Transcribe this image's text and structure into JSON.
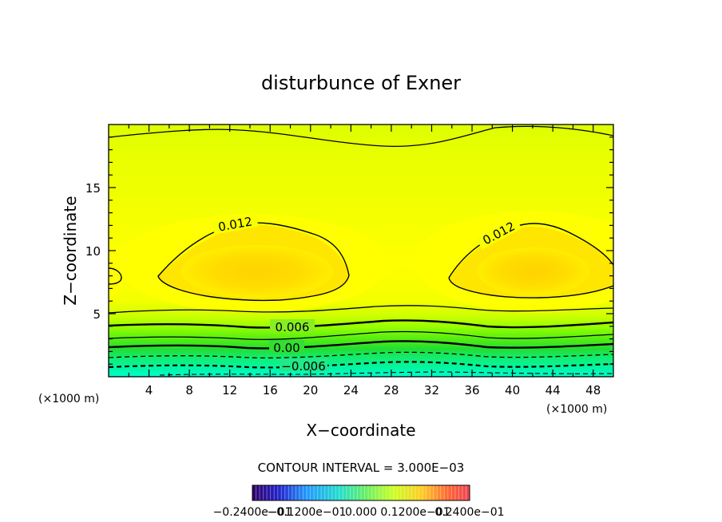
{
  "chart_data": {
    "type": "contour",
    "title": "disturbunce of Exner",
    "xlabel": "X−coordinate",
    "ylabel": "Z−coordinate",
    "x_unit": "(×1000 m)",
    "z_unit": "(×1000 m)",
    "xlim": [
      0,
      50
    ],
    "ylim": [
      0,
      20
    ],
    "x_ticks": [
      "4",
      "8",
      "12",
      "16",
      "20",
      "24",
      "28",
      "32",
      "36",
      "40",
      "44",
      "48"
    ],
    "y_ticks": [
      "5",
      "10",
      "15"
    ],
    "contour_interval_text": "CONTOUR INTERVAL = 3.000E−03",
    "contour_labels": [
      "0.012",
      "0.012",
      "0.006",
      "0.00",
      "−0.006"
    ],
    "colorbar_labels": [
      "−0.2400e−01",
      "−0.1200e−01",
      "0.000",
      "0.1200e−01",
      "0.2400e−01"
    ],
    "colorbar_range": [
      -0.024,
      0.024
    ],
    "features": {
      "maxima": [
        {
          "x": 14,
          "z": 8.2,
          "value": 0.016
        },
        {
          "x": 41,
          "z": 8.2,
          "value": 0.016
        }
      ],
      "minimum_near_surface": -0.009
    },
    "colors": {
      "frame": "#000000",
      "yellow": "#ffff00",
      "orange_core": "#ffd400",
      "yellow_green": "#e8ff00",
      "green": "#33ee22",
      "cyan_bottom": "#00ffcc"
    }
  }
}
